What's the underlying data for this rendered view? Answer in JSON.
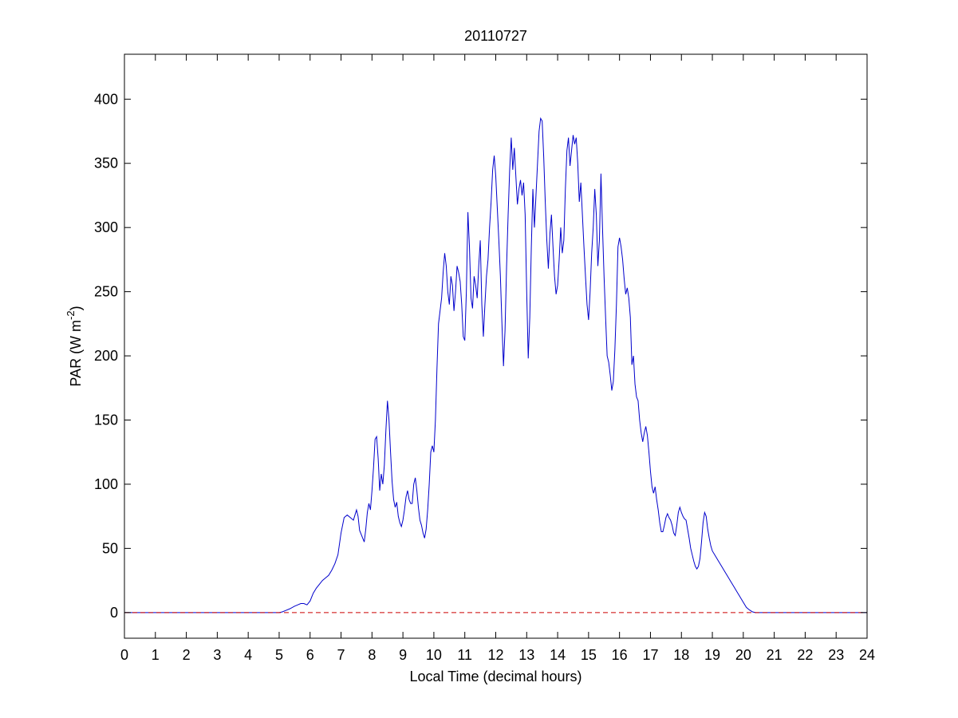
{
  "chart_data": {
    "type": "line",
    "title": "20110727",
    "xlabel": "Local Time (decimal hours)",
    "ylabel": {
      "prefix": "PAR (W m",
      "superscript": "-2",
      "suffix": ")"
    },
    "xlim": [
      0,
      24
    ],
    "ylim": [
      -20,
      435
    ],
    "xticks": [
      0,
      1,
      2,
      3,
      4,
      5,
      6,
      7,
      8,
      9,
      10,
      11,
      12,
      13,
      14,
      15,
      16,
      17,
      18,
      19,
      20,
      21,
      22,
      23,
      24
    ],
    "yticks": [
      0,
      50,
      100,
      150,
      200,
      250,
      300,
      350,
      400
    ],
    "grid": false,
    "series": [
      {
        "color": "#0000cc",
        "style": "solid",
        "points": [
          [
            0,
            0
          ],
          [
            5.0,
            0
          ],
          [
            5.1,
            0.5
          ],
          [
            5.2,
            1.5
          ],
          [
            5.35,
            3
          ],
          [
            5.5,
            5
          ],
          [
            5.6,
            6
          ],
          [
            5.7,
            7
          ],
          [
            5.8,
            7
          ],
          [
            5.9,
            6
          ],
          [
            6.0,
            9
          ],
          [
            6.1,
            15
          ],
          [
            6.2,
            19
          ],
          [
            6.3,
            22
          ],
          [
            6.4,
            25
          ],
          [
            6.5,
            27
          ],
          [
            6.6,
            29
          ],
          [
            6.7,
            33
          ],
          [
            6.8,
            38
          ],
          [
            6.9,
            45
          ],
          [
            7.0,
            62
          ],
          [
            7.1,
            74
          ],
          [
            7.2,
            76
          ],
          [
            7.3,
            74
          ],
          [
            7.4,
            72
          ],
          [
            7.45,
            76
          ],
          [
            7.5,
            80
          ],
          [
            7.55,
            75
          ],
          [
            7.6,
            64
          ],
          [
            7.7,
            58
          ],
          [
            7.75,
            55
          ],
          [
            7.8,
            65
          ],
          [
            7.85,
            78
          ],
          [
            7.9,
            85
          ],
          [
            7.95,
            80
          ],
          [
            8.0,
            95
          ],
          [
            8.05,
            113
          ],
          [
            8.1,
            135
          ],
          [
            8.15,
            137
          ],
          [
            8.2,
            120
          ],
          [
            8.25,
            95
          ],
          [
            8.3,
            108
          ],
          [
            8.35,
            100
          ],
          [
            8.4,
            115
          ],
          [
            8.45,
            142
          ],
          [
            8.5,
            165
          ],
          [
            8.55,
            150
          ],
          [
            8.6,
            125
          ],
          [
            8.65,
            102
          ],
          [
            8.7,
            88
          ],
          [
            8.75,
            82
          ],
          [
            8.8,
            86
          ],
          [
            8.85,
            75
          ],
          [
            8.9,
            70
          ],
          [
            8.95,
            67
          ],
          [
            9.0,
            72
          ],
          [
            9.05,
            80
          ],
          [
            9.1,
            90
          ],
          [
            9.15,
            95
          ],
          [
            9.2,
            88
          ],
          [
            9.25,
            85
          ],
          [
            9.3,
            85
          ],
          [
            9.35,
            100
          ],
          [
            9.4,
            105
          ],
          [
            9.45,
            95
          ],
          [
            9.5,
            82
          ],
          [
            9.55,
            72
          ],
          [
            9.6,
            68
          ],
          [
            9.65,
            62
          ],
          [
            9.7,
            58
          ],
          [
            9.75,
            65
          ],
          [
            9.8,
            80
          ],
          [
            9.85,
            100
          ],
          [
            9.9,
            125
          ],
          [
            9.95,
            130
          ],
          [
            10.0,
            125
          ],
          [
            10.05,
            150
          ],
          [
            10.1,
            190
          ],
          [
            10.15,
            225
          ],
          [
            10.2,
            235
          ],
          [
            10.25,
            245
          ],
          [
            10.3,
            265
          ],
          [
            10.35,
            280
          ],
          [
            10.4,
            270
          ],
          [
            10.45,
            250
          ],
          [
            10.5,
            240
          ],
          [
            10.55,
            262
          ],
          [
            10.6,
            255
          ],
          [
            10.65,
            235
          ],
          [
            10.7,
            250
          ],
          [
            10.75,
            270
          ],
          [
            10.8,
            265
          ],
          [
            10.85,
            258
          ],
          [
            10.9,
            240
          ],
          [
            10.95,
            215
          ],
          [
            11.0,
            212
          ],
          [
            11.05,
            250
          ],
          [
            11.1,
            312
          ],
          [
            11.15,
            285
          ],
          [
            11.2,
            245
          ],
          [
            11.25,
            237
          ],
          [
            11.3,
            262
          ],
          [
            11.35,
            255
          ],
          [
            11.4,
            245
          ],
          [
            11.45,
            270
          ],
          [
            11.5,
            290
          ],
          [
            11.55,
            240
          ],
          [
            11.6,
            215
          ],
          [
            11.65,
            240
          ],
          [
            11.7,
            262
          ],
          [
            11.75,
            275
          ],
          [
            11.8,
            300
          ],
          [
            11.85,
            320
          ],
          [
            11.9,
            345
          ],
          [
            11.95,
            356
          ],
          [
            12.0,
            340
          ],
          [
            12.05,
            315
          ],
          [
            12.1,
            290
          ],
          [
            12.15,
            262
          ],
          [
            12.2,
            225
          ],
          [
            12.25,
            192
          ],
          [
            12.3,
            220
          ],
          [
            12.35,
            270
          ],
          [
            12.4,
            310
          ],
          [
            12.45,
            345
          ],
          [
            12.5,
            370
          ],
          [
            12.55,
            345
          ],
          [
            12.6,
            362
          ],
          [
            12.65,
            340
          ],
          [
            12.7,
            318
          ],
          [
            12.75,
            330
          ],
          [
            12.8,
            337
          ],
          [
            12.85,
            325
          ],
          [
            12.9,
            335
          ],
          [
            12.95,
            310
          ],
          [
            13.0,
            250
          ],
          [
            13.05,
            198
          ],
          [
            13.1,
            230
          ],
          [
            13.15,
            285
          ],
          [
            13.2,
            330
          ],
          [
            13.25,
            300
          ],
          [
            13.3,
            325
          ],
          [
            13.35,
            350
          ],
          [
            13.4,
            375
          ],
          [
            13.45,
            385
          ],
          [
            13.5,
            383
          ],
          [
            13.55,
            355
          ],
          [
            13.6,
            320
          ],
          [
            13.65,
            290
          ],
          [
            13.7,
            268
          ],
          [
            13.75,
            295
          ],
          [
            13.8,
            310
          ],
          [
            13.85,
            285
          ],
          [
            13.9,
            262
          ],
          [
            13.95,
            248
          ],
          [
            14.0,
            255
          ],
          [
            14.05,
            275
          ],
          [
            14.1,
            300
          ],
          [
            14.15,
            280
          ],
          [
            14.2,
            290
          ],
          [
            14.25,
            330
          ],
          [
            14.3,
            360
          ],
          [
            14.35,
            370
          ],
          [
            14.4,
            348
          ],
          [
            14.45,
            360
          ],
          [
            14.5,
            372
          ],
          [
            14.55,
            365
          ],
          [
            14.6,
            370
          ],
          [
            14.65,
            350
          ],
          [
            14.7,
            320
          ],
          [
            14.75,
            335
          ],
          [
            14.8,
            310
          ],
          [
            14.85,
            285
          ],
          [
            14.9,
            262
          ],
          [
            14.95,
            240
          ],
          [
            15.0,
            228
          ],
          [
            15.05,
            250
          ],
          [
            15.1,
            280
          ],
          [
            15.15,
            300
          ],
          [
            15.2,
            330
          ],
          [
            15.25,
            310
          ],
          [
            15.3,
            270
          ],
          [
            15.35,
            290
          ],
          [
            15.4,
            342
          ],
          [
            15.45,
            300
          ],
          [
            15.5,
            262
          ],
          [
            15.55,
            230
          ],
          [
            15.6,
            200
          ],
          [
            15.65,
            195
          ],
          [
            15.7,
            185
          ],
          [
            15.75,
            173
          ],
          [
            15.8,
            180
          ],
          [
            15.85,
            205
          ],
          [
            15.9,
            240
          ],
          [
            15.95,
            285
          ],
          [
            16.0,
            292
          ],
          [
            16.05,
            285
          ],
          [
            16.1,
            275
          ],
          [
            16.15,
            260
          ],
          [
            16.2,
            248
          ],
          [
            16.25,
            253
          ],
          [
            16.3,
            245
          ],
          [
            16.35,
            230
          ],
          [
            16.4,
            193
          ],
          [
            16.45,
            200
          ],
          [
            16.5,
            178
          ],
          [
            16.55,
            168
          ],
          [
            16.6,
            165
          ],
          [
            16.65,
            150
          ],
          [
            16.7,
            140
          ],
          [
            16.75,
            133
          ],
          [
            16.8,
            140
          ],
          [
            16.85,
            145
          ],
          [
            16.9,
            138
          ],
          [
            16.95,
            125
          ],
          [
            17.0,
            110
          ],
          [
            17.05,
            98
          ],
          [
            17.1,
            93
          ],
          [
            17.15,
            98
          ],
          [
            17.2,
            88
          ],
          [
            17.25,
            80
          ],
          [
            17.3,
            70
          ],
          [
            17.35,
            63
          ],
          [
            17.4,
            63
          ],
          [
            17.45,
            68
          ],
          [
            17.5,
            74
          ],
          [
            17.55,
            77
          ],
          [
            17.6,
            74
          ],
          [
            17.65,
            72
          ],
          [
            17.7,
            68
          ],
          [
            17.75,
            62
          ],
          [
            17.8,
            60
          ],
          [
            17.85,
            68
          ],
          [
            17.9,
            78
          ],
          [
            17.95,
            82
          ],
          [
            18.0,
            78
          ],
          [
            18.05,
            75
          ],
          [
            18.1,
            73
          ],
          [
            18.15,
            72
          ],
          [
            18.2,
            65
          ],
          [
            18.25,
            58
          ],
          [
            18.3,
            50
          ],
          [
            18.35,
            45
          ],
          [
            18.4,
            40
          ],
          [
            18.45,
            36
          ],
          [
            18.5,
            34
          ],
          [
            18.55,
            36
          ],
          [
            18.6,
            42
          ],
          [
            18.65,
            55
          ],
          [
            18.7,
            70
          ],
          [
            18.75,
            78
          ],
          [
            18.8,
            75
          ],
          [
            18.85,
            65
          ],
          [
            18.9,
            58
          ],
          [
            18.95,
            52
          ],
          [
            19.0,
            48
          ],
          [
            19.1,
            44
          ],
          [
            19.2,
            40
          ],
          [
            19.3,
            36
          ],
          [
            19.4,
            32
          ],
          [
            19.5,
            28
          ],
          [
            19.6,
            24
          ],
          [
            19.7,
            20
          ],
          [
            19.8,
            16
          ],
          [
            19.9,
            12
          ],
          [
            20.0,
            8
          ],
          [
            20.1,
            4
          ],
          [
            20.2,
            2
          ],
          [
            20.3,
            0.5
          ],
          [
            20.4,
            0
          ],
          [
            24,
            0
          ]
        ]
      },
      {
        "color": "#cc0000",
        "style": "dashed",
        "points": [
          [
            0,
            0
          ],
          [
            24,
            0
          ]
        ]
      }
    ]
  }
}
